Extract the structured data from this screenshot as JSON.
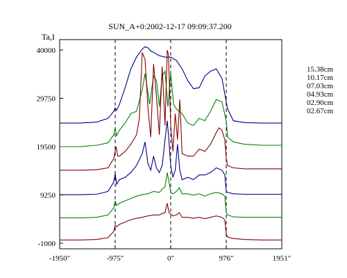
{
  "chart_data": {
    "type": "line",
    "title": "SUN_A+0:2002-12-17 09:09:37.200",
    "ylabel": "Ta,I",
    "xlabel": "",
    "xlim": [
      -1950,
      1951
    ],
    "ylim": [
      -1000,
      40000
    ],
    "grid": false,
    "legend_position": "right",
    "x_ticks": [
      {
        "value": -1950,
        "label": "-1950\""
      },
      {
        "value": -975,
        "label": "-975\""
      },
      {
        "value": 0,
        "label": "0\""
      },
      {
        "value": 976,
        "label": "976\""
      },
      {
        "value": 1951,
        "label": "1951\""
      }
    ],
    "y_ticks": [
      {
        "value": 40000,
        "label": "40000"
      },
      {
        "value": 29750,
        "label": "29750"
      },
      {
        "value": 19500,
        "label": "19500"
      },
      {
        "value": 9250,
        "label": "9250"
      },
      {
        "value": -1000,
        "label": "-1000"
      }
    ],
    "vlines": [
      -975,
      0,
      976
    ],
    "series": [
      {
        "name": "15.38cm",
        "color": "#000080",
        "x": [
          -1950,
          -1600,
          -1300,
          -1100,
          -1000,
          -975,
          -950,
          -900,
          -800,
          -700,
          -600,
          -500,
          -450,
          -400,
          -350,
          -300,
          -200,
          -100,
          0,
          100,
          200,
          300,
          400,
          500,
          600,
          700,
          800,
          900,
          976,
          1000,
          1100,
          1300,
          1600,
          1951
        ],
        "y": [
          24500,
          24500,
          24700,
          25500,
          27000,
          27700,
          27200,
          28500,
          32000,
          36000,
          38500,
          40200,
          40700,
          40500,
          39800,
          39500,
          38800,
          38500,
          38500,
          37800,
          36000,
          33500,
          31800,
          32000,
          34500,
          35500,
          36000,
          34000,
          29000,
          27500,
          25000,
          24600,
          24500,
          24500
        ]
      },
      {
        "name": "10.17cm",
        "color": "#008000",
        "x": [
          -1950,
          -1600,
          -1300,
          -1100,
          -1000,
          -975,
          -950,
          -900,
          -800,
          -700,
          -600,
          -500,
          -450,
          -400,
          -370,
          -300,
          -250,
          -200,
          -150,
          -100,
          -50,
          0,
          50,
          100,
          200,
          300,
          400,
          500,
          600,
          700,
          800,
          900,
          976,
          1000,
          1100,
          1300,
          1600,
          1951
        ],
        "y": [
          19500,
          19500,
          19800,
          20300,
          22000,
          23500,
          21800,
          23000,
          24500,
          26500,
          27000,
          31500,
          35000,
          31000,
          28500,
          34500,
          33500,
          28000,
          34500,
          35500,
          28000,
          35000,
          28500,
          27500,
          26500,
          24500,
          24000,
          25500,
          25000,
          27000,
          29500,
          29000,
          25000,
          21500,
          20500,
          20000,
          19800,
          19800
        ]
      },
      {
        "name": "07.03cm",
        "color": "#800000",
        "x": [
          -1950,
          -1600,
          -1300,
          -1100,
          -1000,
          -960,
          -930,
          -900,
          -800,
          -700,
          -600,
          -550,
          -500,
          -450,
          -400,
          -350,
          -300,
          -250,
          -200,
          -150,
          -100,
          -60,
          -40,
          0,
          40,
          80,
          120,
          160,
          200,
          300,
          400,
          500,
          600,
          700,
          800,
          850,
          900,
          950,
          976,
          1000,
          1100,
          1300,
          1600,
          1951
        ],
        "y": [
          14500,
          14500,
          14600,
          15000,
          17000,
          19500,
          17500,
          17500,
          18500,
          20000,
          22000,
          25500,
          39500,
          38000,
          28000,
          21500,
          37000,
          30000,
          22000,
          36500,
          24000,
          40000,
          39000,
          24000,
          18500,
          26500,
          21000,
          29500,
          18000,
          17500,
          17500,
          19000,
          18500,
          20000,
          22500,
          23500,
          23000,
          21000,
          17000,
          15500,
          15000,
          14800,
          14800,
          14800
        ]
      },
      {
        "name": "04.93cm",
        "color": "#000080",
        "x": [
          -1950,
          -1600,
          -1300,
          -1100,
          -1000,
          -975,
          -950,
          -900,
          -800,
          -700,
          -600,
          -500,
          -450,
          -400,
          -350,
          -300,
          -250,
          -200,
          -150,
          -100,
          -60,
          -40,
          0,
          40,
          80,
          120,
          160,
          200,
          300,
          400,
          500,
          600,
          700,
          800,
          900,
          950,
          976,
          1000,
          1100,
          1300,
          1600,
          1951
        ],
        "y": [
          9300,
          9300,
          9400,
          10000,
          12000,
          13800,
          11500,
          12500,
          13000,
          14000,
          15500,
          18000,
          20500,
          16000,
          14500,
          17500,
          15000,
          14000,
          15500,
          21000,
          25000,
          22000,
          15500,
          13000,
          14500,
          20000,
          14500,
          12500,
          13000,
          12500,
          13500,
          13500,
          14000,
          15000,
          14500,
          13500,
          10000,
          9800,
          9500,
          9400,
          9400,
          9400
        ]
      },
      {
        "name": "02.90cm",
        "color": "#008000",
        "x": [
          -1950,
          -1600,
          -1300,
          -1100,
          -1000,
          -975,
          -950,
          -900,
          -800,
          -700,
          -600,
          -500,
          -400,
          -300,
          -200,
          -150,
          -100,
          -60,
          -30,
          0,
          40,
          100,
          150,
          200,
          300,
          400,
          500,
          600,
          700,
          800,
          900,
          950,
          976,
          1000,
          1100,
          1300,
          1600,
          1951
        ],
        "y": [
          4400,
          4400,
          4500,
          5000,
          6500,
          8000,
          7000,
          7500,
          8000,
          8500,
          9000,
          9300,
          9500,
          10000,
          9800,
          10500,
          11000,
          14000,
          12000,
          9800,
          9500,
          10000,
          10800,
          9500,
          9500,
          9200,
          9500,
          9000,
          9500,
          9800,
          9500,
          9000,
          5500,
          5000,
          4600,
          4500,
          4500,
          4500
        ]
      },
      {
        "name": "02.67cm",
        "color": "#800000",
        "x": [
          -1950,
          -1600,
          -1300,
          -1100,
          -1000,
          -975,
          -950,
          -900,
          -800,
          -700,
          -600,
          -500,
          -400,
          -300,
          -200,
          -150,
          -100,
          -60,
          -30,
          0,
          40,
          100,
          150,
          200,
          300,
          400,
          500,
          600,
          700,
          800,
          900,
          950,
          976,
          1000,
          1100,
          1300,
          1600,
          1951
        ],
        "y": [
          -300,
          -300,
          -200,
          200,
          1500,
          2800,
          2500,
          3000,
          3500,
          4000,
          4300,
          4500,
          4800,
          5000,
          5000,
          5300,
          5500,
          7500,
          5500,
          5200,
          4800,
          5000,
          5500,
          4500,
          4500,
          4300,
          4500,
          4200,
          4500,
          4800,
          4500,
          4000,
          1000,
          300,
          0,
          -200,
          -300,
          -300
        ]
      }
    ]
  }
}
